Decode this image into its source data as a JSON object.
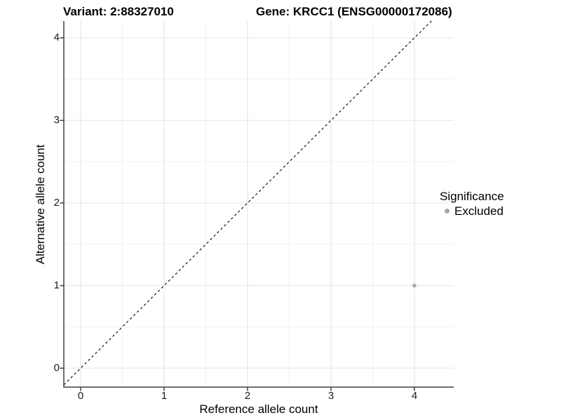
{
  "header": {
    "variant_title": "Variant: 2:88327010",
    "gene_title": "Gene: KRCC1 (ENSG00000172086)"
  },
  "chart_data": {
    "type": "scatter",
    "title": "Variant: 2:88327010    Gene: KRCC1 (ENSG00000172086)",
    "xlabel": "Reference allele count",
    "ylabel": "Alternative allele count",
    "x_ticks": [
      0,
      1,
      2,
      3,
      4
    ],
    "y_ticks": [
      0,
      1,
      2,
      3,
      4
    ],
    "xlim": [
      -0.2,
      4.47
    ],
    "ylim": [
      -0.23,
      4.2
    ],
    "grid": "major and minor gridlines",
    "points": [
      {
        "x": 4,
        "y": 1,
        "series": "Excluded",
        "color": "#a8a8a8"
      }
    ],
    "reference_line": {
      "kind": "identity y=x",
      "style": "dashed",
      "color": "#000000"
    },
    "legend": {
      "title": "Significance",
      "position": "right",
      "items": [
        {
          "label": "Excluded",
          "color": "#a8a8a8"
        }
      ]
    }
  }
}
